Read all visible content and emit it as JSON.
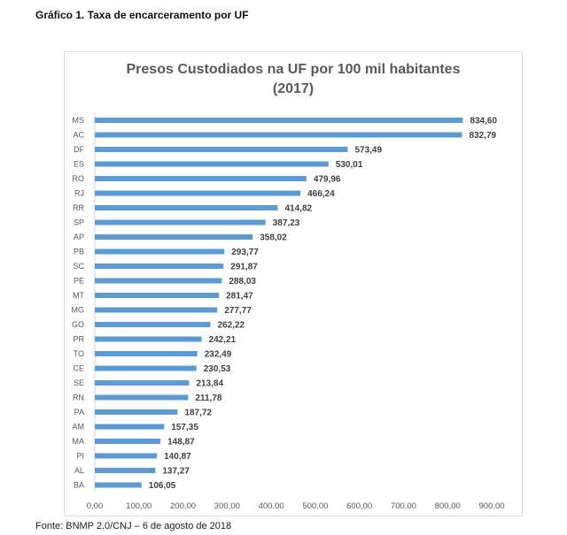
{
  "heading": "Gráfico 1. Taxa de encarceramento por UF",
  "source": "Fonte: BNMP 2.0/CNJ – 6 de agosto de 2018",
  "chart_data": {
    "type": "bar",
    "orientation": "horizontal",
    "title": [
      "Presos Custodiados na UF por 100 mil habitantes",
      "(2017)"
    ],
    "categories": [
      "MS",
      "AC",
      "DF",
      "ES",
      "RO",
      "RJ",
      "RR",
      "SP",
      "AP",
      "PB",
      "SC",
      "PE",
      "MT",
      "MG",
      "GO",
      "PR",
      "TO",
      "CE",
      "SE",
      "RN",
      "PA",
      "AM",
      "MA",
      "PI",
      "AL",
      "BA"
    ],
    "values": [
      834.6,
      832.79,
      573.49,
      530.01,
      479.96,
      466.24,
      414.82,
      387.23,
      358.02,
      293.77,
      291.87,
      288.03,
      281.47,
      277.77,
      262.22,
      242.21,
      232.49,
      230.53,
      213.84,
      211.78,
      187.72,
      157.35,
      148.87,
      140.87,
      137.27,
      106.05
    ],
    "value_labels": [
      "834,60",
      "832,79",
      "573,49",
      "530,01",
      "479,96",
      "466,24",
      "414,82",
      "387,23",
      "358,02",
      "293,77",
      "291,87",
      "288,03",
      "281,47",
      "277,77",
      "262,22",
      "242,21",
      "232,49",
      "230,53",
      "213,84",
      "211,78",
      "187,72",
      "157,35",
      "148,87",
      "140,87",
      "137,27",
      "106,05"
    ],
    "xlim": [
      0,
      900
    ],
    "xticks": [
      "0,00",
      "100,00",
      "200,00",
      "300,00",
      "400,00",
      "500,00",
      "600,00",
      "700,00",
      "800,00",
      "900,00"
    ],
    "grid": false,
    "legend": "none",
    "bar_color": "#5B9BD5"
  }
}
